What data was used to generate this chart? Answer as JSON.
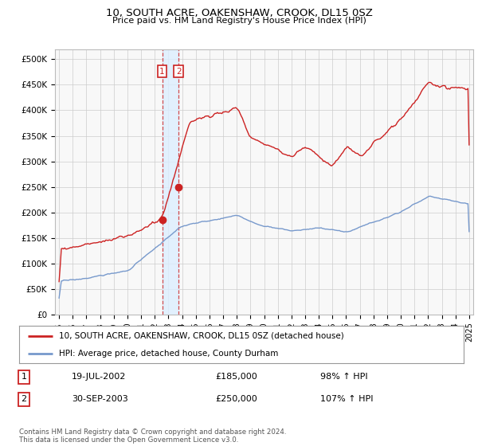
{
  "title": "10, SOUTH ACRE, OAKENSHAW, CROOK, DL15 0SZ",
  "subtitle": "Price paid vs. HM Land Registry's House Price Index (HPI)",
  "ylabel_ticks": [
    "£0",
    "£50K",
    "£100K",
    "£150K",
    "£200K",
    "£250K",
    "£300K",
    "£350K",
    "£400K",
    "£450K",
    "£500K"
  ],
  "ytick_values": [
    0,
    50000,
    100000,
    150000,
    200000,
    250000,
    300000,
    350000,
    400000,
    450000,
    500000
  ],
  "ylim": [
    0,
    520000
  ],
  "xlim_start": 1994.7,
  "xlim_end": 2025.3,
  "hpi_color": "#7799cc",
  "price_color": "#cc2222",
  "shade_color": "#ddeeff",
  "sale1_date": 2002.54,
  "sale1_price": 185000,
  "sale2_date": 2003.75,
  "sale2_price": 250000,
  "legend_line1": "10, SOUTH ACRE, OAKENSHAW, CROOK, DL15 0SZ (detached house)",
  "legend_line2": "HPI: Average price, detached house, County Durham",
  "table_row1": [
    "1",
    "19-JUL-2002",
    "£185,000",
    "98% ↑ HPI"
  ],
  "table_row2": [
    "2",
    "30-SEP-2003",
    "£250,000",
    "107% ↑ HPI"
  ],
  "footer": "Contains HM Land Registry data © Crown copyright and database right 2024.\nThis data is licensed under the Open Government Licence v3.0.",
  "bg_color": "#f8f8f8",
  "grid_color": "#cccccc"
}
